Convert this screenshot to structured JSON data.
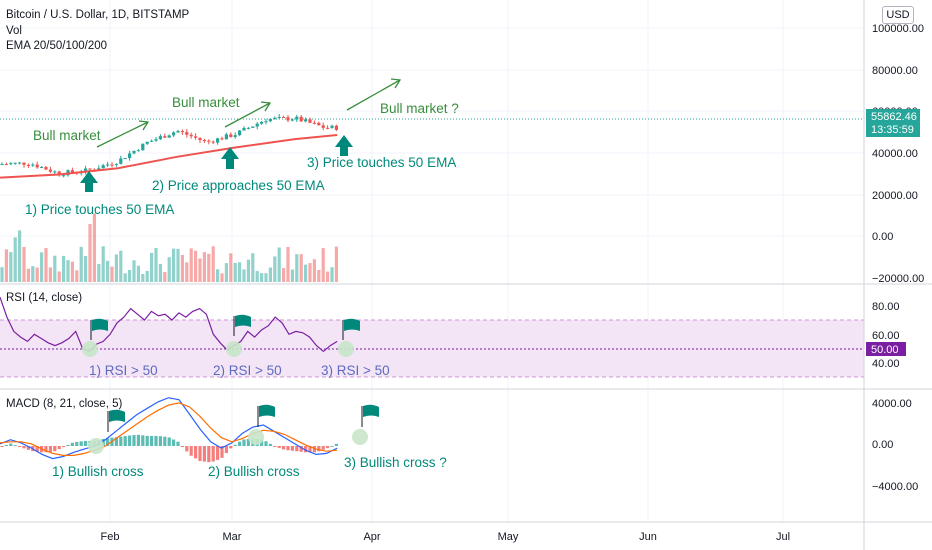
{
  "header": {
    "title": "Bitcoin / U.S. Dollar, 1D, BITSTAMP",
    "vol_label": "Vol",
    "ema_label": "EMA 20/50/100/200",
    "currency_button": "USD"
  },
  "price_scale": {
    "ticks": [
      "100000.00",
      "80000.00",
      "60000.00",
      "40000.00",
      "20000.00",
      "0.00",
      "−20000.00"
    ]
  },
  "last_price": {
    "value": "55862.46",
    "countdown": "13:35:59",
    "color": "#26a69a"
  },
  "rsi_panel": {
    "title": "RSI (14, close)",
    "ticks": [
      "80.00",
      "60.00",
      "40.00"
    ],
    "current": "50.00",
    "line_color": "#7b1fa2",
    "band_color": "#f3e5f5"
  },
  "macd_panel": {
    "title": "MACD (8, 21, close, 5)",
    "ticks": [
      "4000.00",
      "0.00",
      "−4000.00"
    ]
  },
  "time_axis": [
    "Feb",
    "Mar",
    "Apr",
    "May",
    "Jun",
    "Jul"
  ],
  "annotations": {
    "bull1": "Bull market",
    "bull2": "Bull market",
    "bull3": "Bull market ?",
    "touch1": "1) Price touches 50 EMA",
    "touch2": "2) Price approaches 50 EMA",
    "touch3": "3) Price touches 50 EMA",
    "rsi1": "1) RSI > 50",
    "rsi2": "2) RSI > 50",
    "rsi3": "3) RSI > 50",
    "macd1": "1) Bullish cross",
    "macd2": "2) Bullish cross",
    "macd3": "3) Bullish cross ?"
  },
  "colors": {
    "up": "#26a69a",
    "down": "#ef5350",
    "ema": "#ef5350",
    "annotation_green": "#388e3c",
    "annotation_teal": "#00897b",
    "rsi_text": "#5c6bc0",
    "macd_line": "#2962ff",
    "signal_line": "#ff6d00"
  },
  "chart_data": {
    "type": "candlestick",
    "x_range_days": [
      "2021-01-07",
      "2021-07-31"
    ],
    "close_series": {
      "dates": [
        "2021-01-07",
        "2021-01-14",
        "2021-01-21",
        "2021-01-28",
        "2021-02-04",
        "2021-02-11",
        "2021-02-18",
        "2021-02-25",
        "2021-03-04",
        "2021-03-11",
        "2021-03-18",
        "2021-03-25"
      ],
      "values": [
        36500,
        37000,
        32000,
        33500,
        38000,
        47000,
        52500,
        47000,
        51000,
        58000,
        58500,
        54000
      ]
    },
    "ema50": {
      "dates": [
        "2021-01-07",
        "2021-01-21",
        "2021-02-04",
        "2021-02-18",
        "2021-03-04",
        "2021-03-18",
        "2021-03-28"
      ],
      "values": [
        30000,
        31500,
        34500,
        40000,
        44500,
        48500,
        50500
      ]
    },
    "rsi": {
      "ylim": [
        20,
        90
      ],
      "band": [
        30,
        70
      ],
      "midline": 50
    },
    "macd": {
      "ylim": [
        -5500,
        5500
      ]
    }
  }
}
